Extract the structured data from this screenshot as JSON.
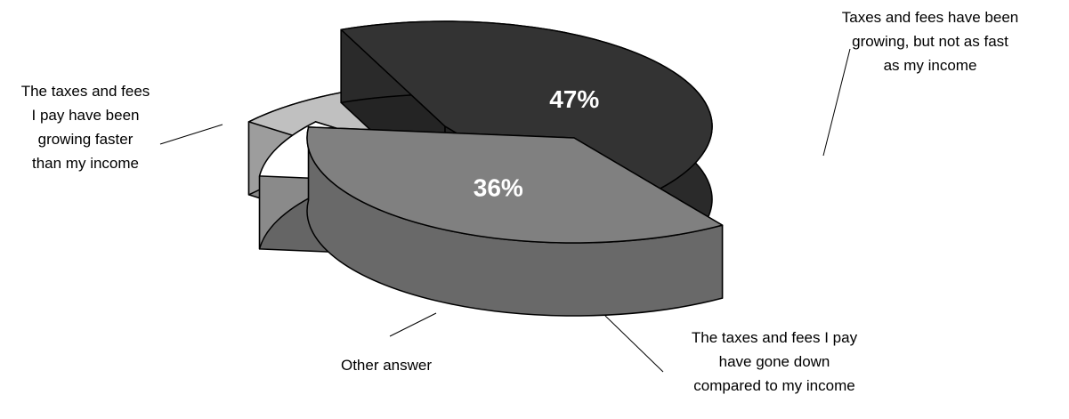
{
  "chart_data": {
    "type": "pie",
    "style": "3d-exploded",
    "legend": "none",
    "slices": [
      {
        "label": "The taxes and fees I pay have been growing faster than my income",
        "label_lines": [
          "The taxes and fees",
          "I pay have been",
          "growing faster",
          "than my income"
        ],
        "value": 47,
        "value_label": "47%",
        "color": "#333333",
        "text_color": "#ffffff"
      },
      {
        "label": "Taxes and fees have been growing, but not as fast as my income",
        "label_lines": [
          "Taxes and fees have been",
          "growing, but not as fast",
          "as my income"
        ],
        "value": 36,
        "value_label": "36%",
        "color": "#808080",
        "text_color": "#ffffff"
      },
      {
        "label": "The taxes and fees I pay have gone down compared to my income",
        "label_lines": [
          "The taxes and fees I pay",
          "have gone down",
          "compared to my income"
        ],
        "value": 9,
        "value_label": "9%",
        "color": "#ffffff",
        "text_color": "#000000"
      },
      {
        "label": "Other answer",
        "label_lines": [
          "Other answer"
        ],
        "value": 8,
        "value_label": "8%",
        "color": "#c0c0c0",
        "text_color": "#000000"
      }
    ]
  }
}
